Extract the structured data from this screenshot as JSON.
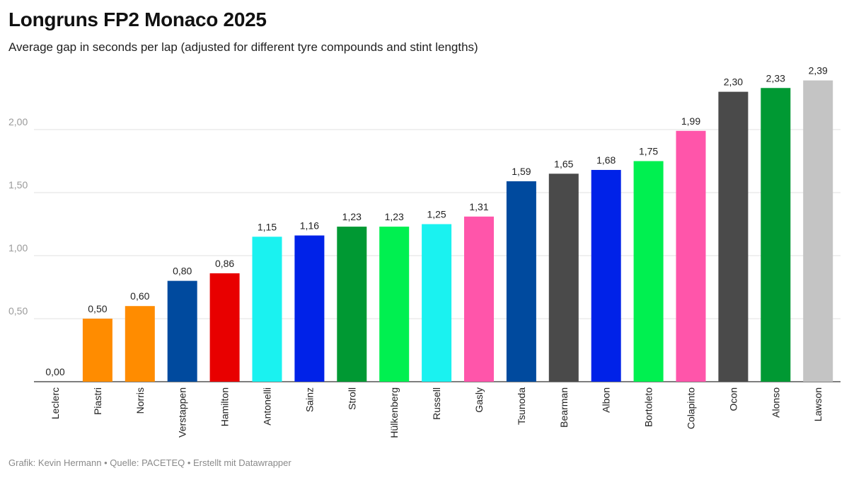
{
  "chart_data": {
    "type": "bar",
    "title": "Longruns FP2 Monaco 2025",
    "subtitle": "Average gap in seconds per lap (adjusted for different tyre compounds and stint lengths)",
    "xlabel": "",
    "ylabel": "",
    "ylim": [
      0,
      2.45
    ],
    "yticks": [
      {
        "value": 0.5,
        "label": "0,50"
      },
      {
        "value": 1.0,
        "label": "1,00"
      },
      {
        "value": 1.5,
        "label": "1,50"
      },
      {
        "value": 2.0,
        "label": "2,00"
      }
    ],
    "grid": true,
    "bars": [
      {
        "category": "Leclerc",
        "value": 0.0,
        "label": "0,00",
        "color": "#DC0000"
      },
      {
        "category": "Piastri",
        "value": 0.5,
        "label": "0,50",
        "color": "#FF8C00"
      },
      {
        "category": "Norris",
        "value": 0.6,
        "label": "0,60",
        "color": "#FF8C00"
      },
      {
        "category": "Verstappen",
        "value": 0.8,
        "label": "0,80",
        "color": "#004A9E"
      },
      {
        "category": "Hamilton",
        "value": 0.86,
        "label": "0,86",
        "color": "#E80000"
      },
      {
        "category": "Antonelli",
        "value": 1.15,
        "label": "1,15",
        "color": "#1AF2F0"
      },
      {
        "category": "Sainz",
        "value": 1.16,
        "label": "1,16",
        "color": "#0022E8"
      },
      {
        "category": "Stroll",
        "value": 1.23,
        "label": "1,23",
        "color": "#009933"
      },
      {
        "category": "Hülkenberg",
        "value": 1.23,
        "label": "1,23",
        "color": "#00F050"
      },
      {
        "category": "Russell",
        "value": 1.25,
        "label": "1,25",
        "color": "#1AF2F0"
      },
      {
        "category": "Gasly",
        "value": 1.31,
        "label": "1,31",
        "color": "#FF55AA"
      },
      {
        "category": "Tsunoda",
        "value": 1.59,
        "label": "1,59",
        "color": "#004A9E"
      },
      {
        "category": "Bearman",
        "value": 1.65,
        "label": "1,65",
        "color": "#4A4A4A"
      },
      {
        "category": "Albon",
        "value": 1.68,
        "label": "1,68",
        "color": "#0022E8"
      },
      {
        "category": "Bortoleto",
        "value": 1.75,
        "label": "1,75",
        "color": "#00F050"
      },
      {
        "category": "Colapinto",
        "value": 1.99,
        "label": "1,99",
        "color": "#FF55AA"
      },
      {
        "category": "Ocon",
        "value": 2.3,
        "label": "2,30",
        "color": "#4A4A4A"
      },
      {
        "category": "Alonso",
        "value": 2.33,
        "label": "2,33",
        "color": "#009933"
      },
      {
        "category": "Lawson",
        "value": 2.39,
        "label": "2,39",
        "color": "#C4C4C4"
      }
    ],
    "gridline_color": "#e2e2e2",
    "axis_color": "#333333"
  },
  "footer": "Grafik: Kevin Hermann • Quelle: PACETEQ • Erstellt mit Datawrapper"
}
